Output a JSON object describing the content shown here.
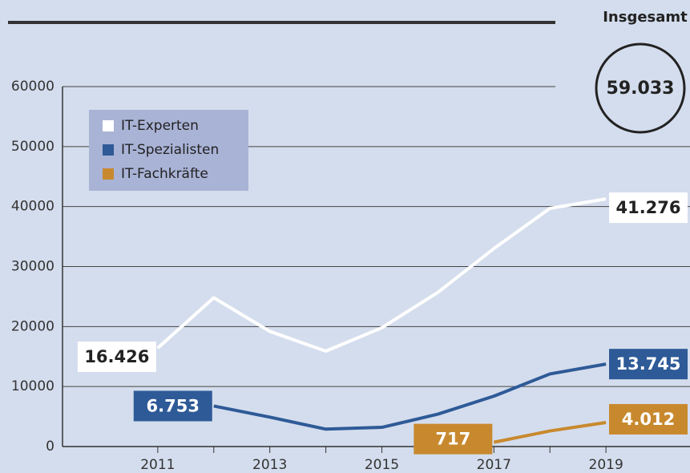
{
  "chart_data": {
    "type": "line",
    "total_label": "Insgesamt",
    "total_value_label": "59.033",
    "x": [
      2011,
      2012,
      2013,
      2014,
      2015,
      2016,
      2017,
      2018,
      2019
    ],
    "series": [
      {
        "name": "IT-Experten",
        "color": "#ffffff",
        "values": [
          16426,
          24800,
          19200,
          15900,
          19800,
          25700,
          33000,
          39700,
          41276
        ],
        "value_labels": [
          "16.426",
          null,
          null,
          null,
          null,
          null,
          null,
          null,
          "41.276"
        ]
      },
      {
        "name": "IT-Spezialisten",
        "color": "#2e5a97",
        "values": [
          null,
          6753,
          4900,
          2900,
          3200,
          5400,
          8400,
          12100,
          13745
        ],
        "value_labels": [
          null,
          "6.753",
          null,
          null,
          null,
          null,
          null,
          null,
          "13.745"
        ]
      },
      {
        "name": "IT-Fachkräfte",
        "color": "#c8892e",
        "values": [
          null,
          null,
          null,
          null,
          null,
          null,
          717,
          2600,
          4012
        ],
        "value_labels": [
          null,
          null,
          null,
          null,
          null,
          null,
          "717",
          null,
          "4.012"
        ]
      }
    ],
    "xlim": [
      2009.3,
      2020.5
    ],
    "xticks": [
      2011,
      2013,
      2015,
      2017,
      2019
    ],
    "xminor": [
      2012,
      2014,
      2016,
      2018
    ],
    "ylim": [
      0,
      60000
    ],
    "yticks": [
      0,
      10000,
      20000,
      30000,
      40000,
      50000,
      60000
    ],
    "grid": true
  }
}
